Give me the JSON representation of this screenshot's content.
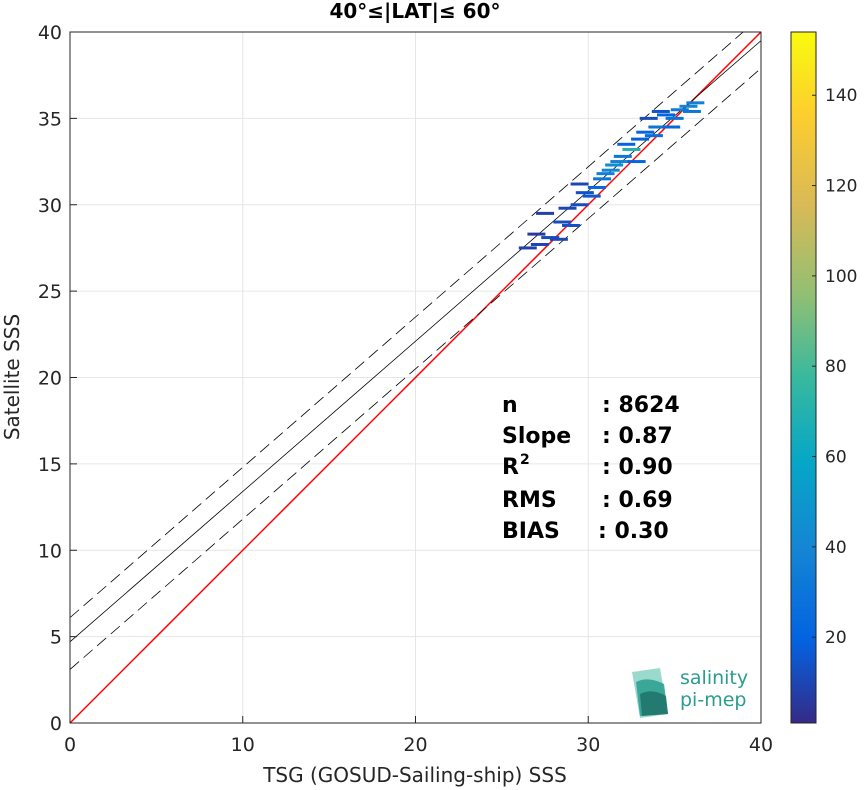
{
  "chart_data": {
    "type": "scatter",
    "title": "40°≤|LAT|≤ 60°",
    "xlabel": "TSG (GOSUD-Sailing-ship) SSS",
    "ylabel": "Satellite SSS",
    "xlim": [
      0,
      40
    ],
    "ylim": [
      0,
      40
    ],
    "xticks": [
      "0",
      "10",
      "20",
      "30",
      "40"
    ],
    "yticks": [
      "0",
      "5",
      "10",
      "15",
      "20",
      "25",
      "30",
      "35",
      "40"
    ],
    "grid": true,
    "lines": [
      {
        "name": "",
        "style": "solid-red",
        "slope": 1.0,
        "intercept": 0.0
      },
      {
        "name": "",
        "style": "solid-black",
        "slope": 0.87,
        "intercept": 4.7
      },
      {
        "name": "",
        "style": "dashed-black",
        "slope": 0.87,
        "intercept": 6.1
      },
      {
        "name": "",
        "style": "dashed-black",
        "slope": 0.87,
        "intercept": 3.1
      }
    ],
    "density_points": [
      {
        "x": 26.5,
        "y": 27.5,
        "count": 8
      },
      {
        "x": 27.2,
        "y": 27.7,
        "count": 10
      },
      {
        "x": 27.8,
        "y": 28.1,
        "count": 12
      },
      {
        "x": 27.0,
        "y": 28.3,
        "count": 6
      },
      {
        "x": 28.3,
        "y": 28.0,
        "count": 10
      },
      {
        "x": 27.5,
        "y": 29.5,
        "count": 8
      },
      {
        "x": 28.5,
        "y": 29.0,
        "count": 12
      },
      {
        "x": 29.0,
        "y": 28.8,
        "count": 14
      },
      {
        "x": 28.8,
        "y": 29.8,
        "count": 10
      },
      {
        "x": 29.5,
        "y": 30.0,
        "count": 12
      },
      {
        "x": 29.8,
        "y": 30.7,
        "count": 14
      },
      {
        "x": 30.2,
        "y": 30.5,
        "count": 16
      },
      {
        "x": 29.5,
        "y": 31.2,
        "count": 10
      },
      {
        "x": 30.5,
        "y": 31.0,
        "count": 22
      },
      {
        "x": 30.8,
        "y": 31.5,
        "count": 30
      },
      {
        "x": 31.0,
        "y": 31.8,
        "count": 35
      },
      {
        "x": 31.3,
        "y": 32.0,
        "count": 40
      },
      {
        "x": 31.5,
        "y": 32.3,
        "count": 45
      },
      {
        "x": 31.8,
        "y": 32.5,
        "count": 38
      },
      {
        "x": 32.0,
        "y": 32.8,
        "count": 30
      },
      {
        "x": 32.5,
        "y": 33.2,
        "count": 70
      },
      {
        "x": 32.2,
        "y": 33.5,
        "count": 20
      },
      {
        "x": 33.0,
        "y": 33.8,
        "count": 18
      },
      {
        "x": 33.3,
        "y": 34.2,
        "count": 22
      },
      {
        "x": 33.8,
        "y": 34.0,
        "count": 25
      },
      {
        "x": 34.0,
        "y": 34.5,
        "count": 30
      },
      {
        "x": 33.5,
        "y": 35.0,
        "count": 12
      },
      {
        "x": 34.5,
        "y": 35.2,
        "count": 20
      },
      {
        "x": 35.0,
        "y": 35.0,
        "count": 28
      },
      {
        "x": 35.3,
        "y": 35.5,
        "count": 34
      },
      {
        "x": 35.8,
        "y": 35.7,
        "count": 40
      },
      {
        "x": 36.2,
        "y": 35.9,
        "count": 36
      },
      {
        "x": 36.0,
        "y": 35.4,
        "count": 30
      },
      {
        "x": 34.8,
        "y": 34.5,
        "count": 22
      },
      {
        "x": 34.2,
        "y": 35.4,
        "count": 15
      },
      {
        "x": 32.8,
        "y": 32.5,
        "count": 20
      }
    ],
    "stats": [
      {
        "label": "n",
        "value": ": 8624"
      },
      {
        "label": "Slope",
        "value": ": 0.87"
      },
      {
        "label": "R",
        "sup": "2",
        "value": ": 0.90"
      },
      {
        "label": "RMS",
        "value": ": 0.69"
      },
      {
        "label": "BIAS",
        "value": ": 0.30"
      }
    ],
    "colorbar": {
      "range": [
        1,
        154
      ],
      "ticks": [
        "20",
        "40",
        "60",
        "80",
        "100",
        "120",
        "140"
      ],
      "colormap": "parula"
    }
  },
  "logo": {
    "line1": "salinity",
    "line2": "pi-mep",
    "color": "#2a9d8f"
  }
}
